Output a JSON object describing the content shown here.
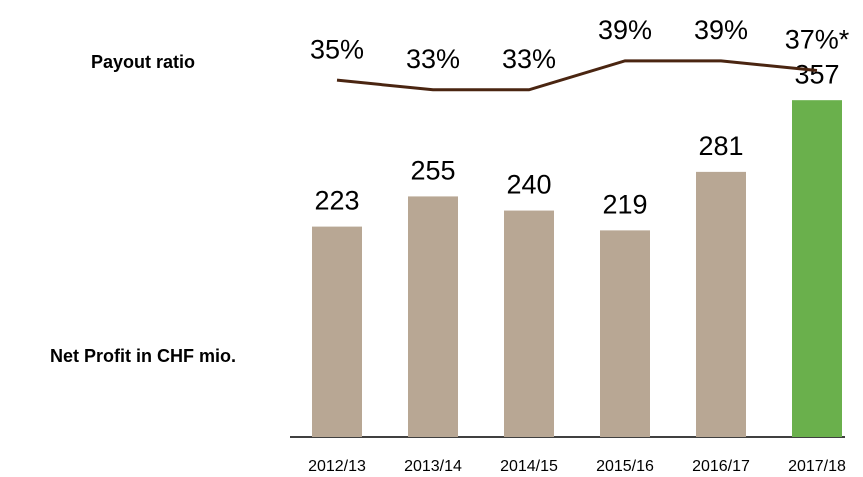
{
  "chart_data": {
    "type": "bar",
    "categories": [
      "2012/13",
      "2013/14",
      "2014/15",
      "2015/16",
      "2016/17",
      "2017/18"
    ],
    "series": [
      {
        "name": "Net Profit in CHF mio.",
        "type": "bar",
        "colors": [
          "#b8a794",
          "#b8a794",
          "#b8a794",
          "#b8a794",
          "#b8a794",
          "#6ab04c"
        ],
        "values": [
          223,
          255,
          240,
          219,
          281,
          357
        ]
      },
      {
        "name": "Payout ratio",
        "type": "line",
        "axis": "y2",
        "color": "#4a2511",
        "values": [
          35,
          33,
          33,
          39,
          39,
          37
        ],
        "value_labels": [
          "35%",
          "33%",
          "33%",
          "39%",
          "39%",
          "37%*"
        ]
      }
    ],
    "ylim": [
      0,
      460
    ],
    "y2lim": [
      -39,
      51
    ],
    "grid": false
  }
}
